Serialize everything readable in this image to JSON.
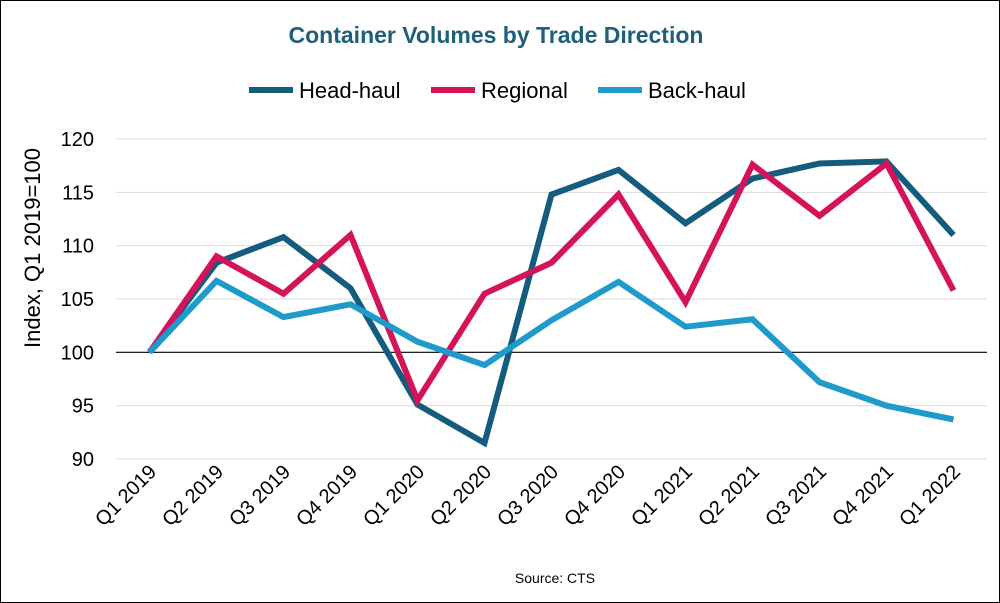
{
  "chart_data": {
    "type": "line",
    "title": "Container Volumes by Trade Direction",
    "ylabel": "Index, Q1 2019=100",
    "xlabel": "",
    "source": "Source: CTS",
    "categories": [
      "Q1 2019",
      "Q2 2019",
      "Q3 2019",
      "Q4 2019",
      "Q1 2020",
      "Q2 2020",
      "Q3 2020",
      "Q4 2020",
      "Q1 2021",
      "Q2 2021",
      "Q3 2021",
      "Q4 2021",
      "Q1 2022"
    ],
    "ylim": [
      90,
      120
    ],
    "yticks": [
      "90",
      "95",
      "100",
      "105",
      "110",
      "115",
      "120"
    ],
    "reference_line": 100,
    "grid": true,
    "legend_position": "top",
    "series": [
      {
        "name": "Head-haul",
        "color": "#145C7E",
        "values": [
          100,
          108.4,
          110.8,
          106.0,
          95.1,
          91.5,
          114.8,
          117.1,
          112.1,
          116.3,
          117.7,
          117.9,
          111.0
        ]
      },
      {
        "name": "Regional",
        "color": "#D4145A",
        "values": [
          100,
          109.0,
          105.5,
          111.0,
          95.5,
          105.5,
          108.4,
          114.8,
          104.7,
          117.6,
          112.8,
          117.7,
          105.8
        ]
      },
      {
        "name": "Back-haul",
        "color": "#1E9ACB",
        "values": [
          100,
          106.7,
          103.3,
          104.5,
          101.0,
          98.8,
          103.0,
          106.6,
          102.4,
          103.1,
          97.2,
          95.0,
          93.7
        ]
      }
    ]
  }
}
